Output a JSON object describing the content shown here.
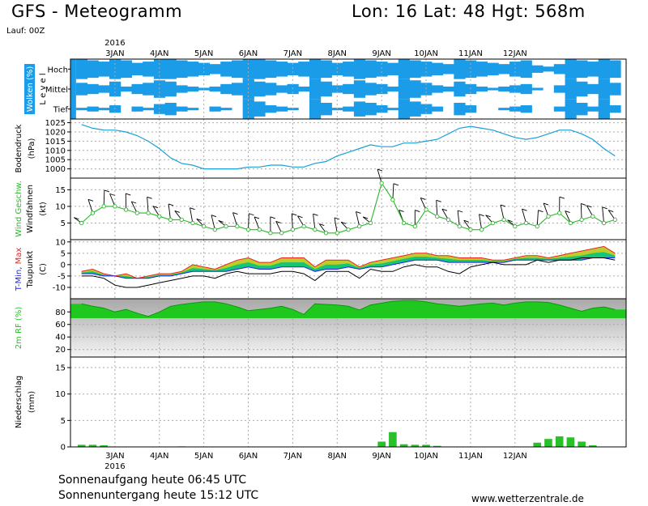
{
  "header": {
    "title": "GFS - Meteogramm",
    "location": "Lon: 16  Lat: 48  Hgt: 568m",
    "run": "Lauf: 00Z"
  },
  "footer": {
    "sunrise": "Sonnenaufgang heute 06:45 UTC",
    "sunset": "Sonnenuntergang heute 15:12 UTC",
    "source": "www.wetterzentrale.de"
  },
  "colors": {
    "cloud": "#1a9ce8",
    "pressure": "#19a0d8",
    "wind": "#2ab82a",
    "barb": "#000000",
    "tmin": "#2222ee",
    "tmax": "#ee2222",
    "dewpoint": "#000000",
    "rh": "#1ec81e",
    "precip": "#2ac02a",
    "fill_orange": "#e8a020",
    "fill_yellow": "#d8d030",
    "fill_green": "#18c018",
    "fill_teal": "#18c8a0"
  },
  "chart_data": {
    "type": "line",
    "year": "2016",
    "dates": [
      "3JAN",
      "4JAN",
      "5JAN",
      "6JAN",
      "7JAN",
      "8JAN",
      "9JAN",
      "10JAN",
      "11JAN",
      "12JAN"
    ],
    "x_hours": [
      6,
      12,
      18,
      24,
      30,
      36,
      42,
      48,
      54,
      60,
      66,
      72,
      78,
      84,
      90,
      96,
      102,
      108,
      114,
      120,
      126,
      132,
      138,
      144,
      150,
      156,
      162,
      168,
      174,
      180,
      186,
      192,
      198,
      204,
      210,
      216,
      222,
      228,
      234,
      240,
      246,
      252,
      258,
      264,
      270,
      276,
      282,
      288,
      294
    ],
    "panels": [
      {
        "id": "cloud",
        "type": "heatmap",
        "ylabel": "Wolken (%)",
        "ylabel2": "L e v e l",
        "levels": [
          "Hoch",
          "Mittel",
          "Tief"
        ],
        "tiers": [
          8,
          5,
          1,
          7,
          4,
          2,
          6,
          3,
          1,
          8,
          6,
          3,
          7,
          2,
          0,
          5,
          4,
          2,
          6,
          5,
          1,
          8,
          7,
          4,
          8,
          6,
          5,
          7,
          3,
          2,
          6,
          2,
          1,
          5,
          1,
          0,
          4,
          2,
          2,
          6,
          4,
          1,
          7,
          5,
          0,
          8,
          8,
          8,
          8,
          6,
          6,
          7,
          5,
          3,
          6,
          3,
          2,
          5,
          4,
          1,
          6,
          2,
          0,
          8,
          8,
          8,
          7,
          6,
          5,
          5,
          3,
          1,
          6,
          4,
          2,
          8,
          7,
          6,
          7,
          5,
          5,
          6,
          4,
          3,
          5,
          2,
          1,
          8,
          8,
          8,
          7,
          7,
          6,
          6,
          5,
          4,
          5,
          3,
          2,
          4,
          2,
          0,
          8,
          6,
          5,
          7,
          4,
          3,
          6,
          2,
          0,
          5,
          1,
          0,
          4,
          2,
          1,
          6,
          3,
          2,
          7,
          4,
          3,
          3,
          1,
          0,
          2,
          0,
          0,
          4,
          3,
          2,
          8,
          8,
          8,
          7,
          6,
          5,
          6,
          4,
          2,
          8,
          8,
          8,
          7,
          5,
          3
        ]
      },
      {
        "id": "pressure",
        "type": "line",
        "ylabel": "Bodendruck",
        "unit": "(hPa)",
        "ylim": [
          995,
          1027
        ],
        "yticks": [
          1000,
          1005,
          1010,
          1015,
          1020,
          1025
        ],
        "values": [
          1024,
          1022,
          1021,
          1021,
          1020,
          1018,
          1015,
          1011,
          1006,
          1003,
          1002,
          1000,
          1000,
          1000,
          1000,
          1001,
          1001,
          1002,
          1002,
          1001,
          1001,
          1003,
          1004,
          1007,
          1009,
          1011,
          1013,
          1012,
          1012,
          1014,
          1014,
          1015,
          1016,
          1019,
          1022,
          1023,
          1022,
          1021,
          1019,
          1017,
          1016,
          1017,
          1019,
          1021,
          1021,
          1019,
          1016,
          1011,
          1007
        ]
      },
      {
        "id": "wind",
        "type": "line",
        "ylabel": "Wind Geschw.",
        "ylabel2": "Windfahnen",
        "unit": "(kt)",
        "ylim": [
          0,
          18.5
        ],
        "yticks": [
          5,
          10,
          15
        ],
        "values": [
          5,
          8,
          10,
          10,
          9,
          8,
          8,
          7,
          6,
          6,
          5,
          4,
          3,
          4,
          4,
          3,
          3,
          2,
          2,
          3,
          4,
          3,
          2,
          2,
          3,
          4,
          5,
          17,
          12,
          5,
          4,
          9,
          7,
          6,
          4,
          3,
          3,
          5,
          6,
          4,
          5,
          4,
          7,
          8,
          5,
          6,
          7,
          5,
          6
        ]
      },
      {
        "id": "temperature",
        "type": "area",
        "ylabel": "T-Min, Max",
        "ylabel2": "Taupunkt",
        "unit": "(C)",
        "ylim": [
          -15,
          11
        ],
        "yticks": [
          -10,
          -5,
          0,
          5,
          10
        ],
        "tmax": [
          -3,
          -2,
          -4,
          -5,
          -4,
          -6,
          -5,
          -4,
          -4,
          -3,
          0,
          -1,
          -2,
          0,
          2,
          3,
          1,
          1,
          3,
          3,
          3,
          -1,
          2,
          2,
          2,
          -1,
          1,
          2,
          3,
          4,
          5,
          5,
          4,
          4,
          3,
          3,
          3,
          2,
          2,
          3,
          4,
          4,
          3,
          4,
          5,
          6,
          7,
          8,
          5
        ],
        "tmin": [
          -4,
          -4,
          -5,
          -5,
          -6,
          -6,
          -6,
          -5,
          -5,
          -4,
          -3,
          -3,
          -3,
          -3,
          -2,
          -1,
          -2,
          -2,
          -1,
          -1,
          -1,
          -3,
          -2,
          -2,
          -1,
          -2,
          -1,
          -1,
          0,
          1,
          2,
          2,
          2,
          1,
          1,
          1,
          1,
          1,
          1,
          2,
          2,
          2,
          2,
          2,
          2,
          2,
          3,
          3,
          3
        ],
        "dewpoint": [
          -5,
          -5,
          -6,
          -9,
          -10,
          -10,
          -9,
          -8,
          -7,
          -6,
          -5,
          -5,
          -6,
          -4,
          -3,
          -4,
          -4,
          -4,
          -3,
          -3,
          -4,
          -7,
          -3,
          -3,
          -3,
          -6,
          -2,
          -3,
          -3,
          -1,
          0,
          -1,
          -1,
          -3,
          -4,
          -1,
          0,
          1,
          0,
          0,
          0,
          2,
          1,
          2,
          2,
          3,
          3,
          3,
          2
        ]
      },
      {
        "id": "rh",
        "type": "area",
        "ylabel": "2m RF",
        "unit": "(%)",
        "ylim": [
          8,
          101
        ],
        "yticks": [
          20,
          40,
          60,
          80
        ],
        "values": [
          93,
          89,
          86,
          80,
          84,
          78,
          73,
          80,
          89,
          92,
          94,
          96,
          96,
          93,
          88,
          82,
          84,
          86,
          89,
          84,
          76,
          93,
          92,
          91,
          89,
          83,
          91,
          94,
          97,
          98,
          98,
          96,
          93,
          91,
          89,
          91,
          93,
          94,
          91,
          94,
          96,
          96,
          95,
          91,
          86,
          81,
          86,
          88,
          84
        ]
      },
      {
        "id": "precip",
        "type": "bar",
        "ylabel": "Niederschlag",
        "unit": "(mm)",
        "ylim": [
          0,
          17
        ],
        "yticks": [
          0,
          5,
          10,
          15
        ],
        "values": [
          0.4,
          0.4,
          0.3,
          0,
          0,
          0,
          0,
          0,
          0,
          0.1,
          0,
          0,
          0,
          0,
          0,
          0,
          0,
          0,
          0,
          0,
          0,
          0,
          0,
          0,
          0,
          0,
          0,
          1.0,
          2.8,
          0.5,
          0.4,
          0.4,
          0.2,
          0,
          0,
          0,
          0,
          0,
          0,
          0,
          0,
          0.8,
          1.5,
          2.0,
          1.8,
          1.0,
          0.3,
          0,
          0
        ]
      }
    ]
  }
}
